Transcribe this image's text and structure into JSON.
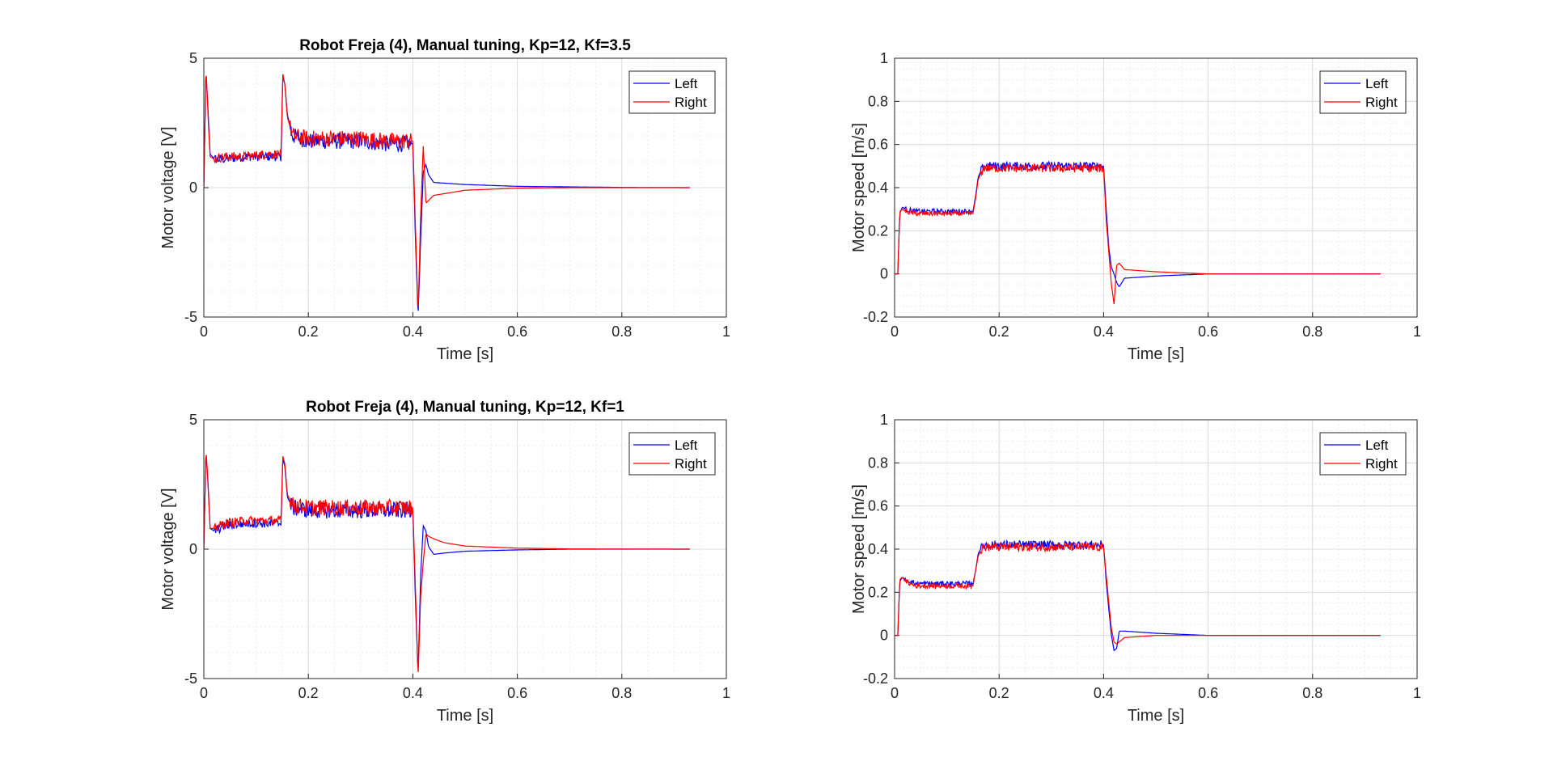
{
  "colors": {
    "left": "#0000ff",
    "right": "#ff0000",
    "grid": "#dcdcdc",
    "axis": "#262626"
  },
  "chart_data": [
    {
      "type": "line",
      "title": "Robot Freja (4), Manual tuning, Kp=12, Kf=3.5",
      "xlabel": "Time [s]",
      "ylabel": "Motor voltage [V]",
      "xlim": [
        0,
        1
      ],
      "ylim": [
        -5,
        5
      ],
      "xticks": [
        "0",
        "0.2",
        "0.4",
        "0.6",
        "0.8",
        "1"
      ],
      "yticks": [
        "-5",
        "0",
        "5"
      ],
      "grid": true,
      "minor_grid": true,
      "legend": {
        "position": "top-right",
        "entries": [
          "Left",
          "Right"
        ]
      },
      "series": [
        {
          "name": "Left",
          "color": "#0000ff",
          "x": [
            0,
            0.004,
            0.008,
            0.012,
            0.02,
            0.04,
            0.08,
            0.12,
            0.148,
            0.151,
            0.155,
            0.16,
            0.17,
            0.2,
            0.25,
            0.3,
            0.35,
            0.39,
            0.4,
            0.405,
            0.41,
            0.415,
            0.42,
            0.425,
            0.43,
            0.44,
            0.5,
            0.6,
            0.7,
            0.8,
            0.93
          ],
          "y": [
            0,
            4.6,
            3,
            1.3,
            1.1,
            1.1,
            1.2,
            1.2,
            1.2,
            4.3,
            4.0,
            2.8,
            2.0,
            1.8,
            1.8,
            1.8,
            1.7,
            1.7,
            1.7,
            -2,
            -5,
            -2,
            0.6,
            0.9,
            0.5,
            0.2,
            0.12,
            0.05,
            0.03,
            0.01,
            0
          ]
        },
        {
          "name": "Right",
          "color": "#ff0000",
          "x": [
            0,
            0.004,
            0.008,
            0.012,
            0.02,
            0.04,
            0.08,
            0.12,
            0.148,
            0.151,
            0.155,
            0.16,
            0.17,
            0.2,
            0.25,
            0.3,
            0.35,
            0.39,
            0.4,
            0.405,
            0.41,
            0.415,
            0.42,
            0.425,
            0.43,
            0.44,
            0.5,
            0.6,
            0.7,
            0.8,
            0.93
          ],
          "y": [
            0,
            4.7,
            2.8,
            1.2,
            1.1,
            1.2,
            1.2,
            1.3,
            1.3,
            4.4,
            4.0,
            2.7,
            2.0,
            1.9,
            1.9,
            1.9,
            1.8,
            1.8,
            1.8,
            -1.5,
            -4.9,
            -1,
            1.6,
            -0.6,
            -0.5,
            -0.3,
            -0.1,
            -0.02,
            0,
            0,
            0
          ]
        }
      ]
    },
    {
      "type": "line",
      "title": "",
      "xlabel": "Time [s]",
      "ylabel": "Motor speed [m/s]",
      "xlim": [
        0,
        1
      ],
      "ylim": [
        -0.2,
        1
      ],
      "xticks": [
        "0",
        "0.2",
        "0.4",
        "0.6",
        "0.8",
        "1"
      ],
      "yticks": [
        "-0.2",
        "0",
        "0.2",
        "0.4",
        "0.6",
        "0.8",
        "1"
      ],
      "grid": true,
      "minor_grid": true,
      "legend": {
        "position": "top-right",
        "entries": [
          "Left",
          "Right"
        ]
      },
      "series": [
        {
          "name": "Left",
          "color": "#0000ff",
          "x": [
            0,
            0.006,
            0.01,
            0.015,
            0.02,
            0.04,
            0.08,
            0.12,
            0.15,
            0.155,
            0.16,
            0.17,
            0.2,
            0.25,
            0.3,
            0.35,
            0.4,
            0.405,
            0.41,
            0.415,
            0.42,
            0.425,
            0.43,
            0.44,
            0.5,
            0.6,
            0.7,
            0.8,
            0.93
          ],
          "y": [
            0,
            0,
            0.28,
            0.31,
            0.3,
            0.29,
            0.29,
            0.29,
            0.29,
            0.36,
            0.45,
            0.5,
            0.5,
            0.5,
            0.5,
            0.5,
            0.5,
            0.3,
            0.12,
            0.03,
            0,
            -0.04,
            -0.06,
            -0.02,
            -0.01,
            0,
            0,
            0,
            0
          ]
        },
        {
          "name": "Right",
          "color": "#ff0000",
          "x": [
            0,
            0.006,
            0.01,
            0.015,
            0.02,
            0.04,
            0.08,
            0.12,
            0.15,
            0.155,
            0.16,
            0.17,
            0.2,
            0.25,
            0.3,
            0.35,
            0.4,
            0.405,
            0.41,
            0.415,
            0.42,
            0.425,
            0.43,
            0.44,
            0.5,
            0.6,
            0.7,
            0.8,
            0.93
          ],
          "y": [
            0,
            0,
            0.29,
            0.3,
            0.29,
            0.28,
            0.28,
            0.28,
            0.28,
            0.35,
            0.44,
            0.49,
            0.49,
            0.49,
            0.49,
            0.49,
            0.49,
            0.25,
            0.1,
            -0.05,
            -0.14,
            0.04,
            0.05,
            0.02,
            0.01,
            0,
            0,
            0,
            0
          ]
        }
      ]
    },
    {
      "type": "line",
      "title": "Robot Freja (4), Manual tuning, Kp=12, Kf=1",
      "xlabel": "Time [s]",
      "ylabel": "Motor voltage [V]",
      "xlim": [
        0,
        1
      ],
      "ylim": [
        -5,
        5
      ],
      "xticks": [
        "0",
        "0.2",
        "0.4",
        "0.6",
        "0.8",
        "1"
      ],
      "yticks": [
        "-5",
        "0",
        "5"
      ],
      "grid": true,
      "minor_grid": true,
      "legend": {
        "position": "top-right",
        "entries": [
          "Left",
          "Right"
        ]
      },
      "series": [
        {
          "name": "Left",
          "color": "#0000ff",
          "x": [
            0,
            0.004,
            0.008,
            0.012,
            0.02,
            0.04,
            0.08,
            0.12,
            0.148,
            0.151,
            0.155,
            0.16,
            0.17,
            0.2,
            0.25,
            0.3,
            0.35,
            0.39,
            0.4,
            0.405,
            0.41,
            0.415,
            0.42,
            0.425,
            0.43,
            0.44,
            0.46,
            0.5,
            0.6,
            0.7,
            0.93
          ],
          "y": [
            0,
            3.8,
            2.5,
            0.8,
            0.7,
            0.9,
            1.0,
            1.0,
            1.0,
            3.5,
            3.2,
            2.0,
            1.6,
            1.5,
            1.5,
            1.5,
            1.5,
            1.5,
            1.5,
            -2,
            -4.8,
            -1,
            0.9,
            0.7,
            0.1,
            -0.2,
            -0.15,
            -0.08,
            -0.03,
            0,
            0
          ]
        },
        {
          "name": "Right",
          "color": "#ff0000",
          "x": [
            0,
            0.004,
            0.008,
            0.012,
            0.02,
            0.04,
            0.08,
            0.12,
            0.148,
            0.151,
            0.155,
            0.16,
            0.17,
            0.2,
            0.25,
            0.3,
            0.35,
            0.39,
            0.4,
            0.405,
            0.41,
            0.415,
            0.42,
            0.425,
            0.43,
            0.44,
            0.46,
            0.5,
            0.6,
            0.7,
            0.93
          ],
          "y": [
            0,
            3.9,
            2.6,
            0.8,
            0.8,
            1.0,
            1.1,
            1.1,
            1.1,
            3.6,
            3.3,
            2.1,
            1.7,
            1.6,
            1.6,
            1.6,
            1.6,
            1.6,
            1.6,
            -1.5,
            -5,
            -1.8,
            -0.5,
            0.6,
            0.5,
            0.4,
            0.25,
            0.12,
            0.04,
            0.01,
            0
          ]
        }
      ]
    },
    {
      "type": "line",
      "title": "",
      "xlabel": "Time [s]",
      "ylabel": "Motor speed [m/s]",
      "xlim": [
        0,
        1
      ],
      "ylim": [
        -0.2,
        1
      ],
      "xticks": [
        "0",
        "0.2",
        "0.4",
        "0.6",
        "0.8",
        "1"
      ],
      "yticks": [
        "-0.2",
        "0",
        "0.2",
        "0.4",
        "0.6",
        "0.8",
        "1"
      ],
      "grid": true,
      "minor_grid": true,
      "legend": {
        "position": "top-right",
        "entries": [
          "Left",
          "Right"
        ]
      },
      "series": [
        {
          "name": "Left",
          "color": "#0000ff",
          "x": [
            0,
            0.006,
            0.01,
            0.015,
            0.02,
            0.04,
            0.08,
            0.12,
            0.15,
            0.155,
            0.16,
            0.17,
            0.2,
            0.25,
            0.3,
            0.35,
            0.4,
            0.405,
            0.41,
            0.415,
            0.42,
            0.425,
            0.43,
            0.44,
            0.5,
            0.6,
            0.7,
            0.93
          ],
          "y": [
            0,
            0,
            0.25,
            0.27,
            0.26,
            0.24,
            0.24,
            0.24,
            0.24,
            0.3,
            0.38,
            0.42,
            0.42,
            0.42,
            0.42,
            0.42,
            0.42,
            0.25,
            0.12,
            0,
            -0.07,
            -0.06,
            0.02,
            0.02,
            0.01,
            0,
            0,
            0
          ]
        },
        {
          "name": "Right",
          "color": "#ff0000",
          "x": [
            0,
            0.006,
            0.01,
            0.015,
            0.02,
            0.04,
            0.08,
            0.12,
            0.15,
            0.155,
            0.16,
            0.17,
            0.2,
            0.25,
            0.3,
            0.35,
            0.4,
            0.405,
            0.41,
            0.415,
            0.42,
            0.425,
            0.43,
            0.44,
            0.5,
            0.6,
            0.7,
            0.93
          ],
          "y": [
            0,
            0,
            0.26,
            0.27,
            0.25,
            0.23,
            0.23,
            0.23,
            0.23,
            0.3,
            0.37,
            0.41,
            0.41,
            0.41,
            0.41,
            0.41,
            0.41,
            0.28,
            0.15,
            0.03,
            -0.03,
            -0.04,
            -0.03,
            -0.01,
            0,
            0,
            0,
            0
          ]
        }
      ]
    }
  ]
}
